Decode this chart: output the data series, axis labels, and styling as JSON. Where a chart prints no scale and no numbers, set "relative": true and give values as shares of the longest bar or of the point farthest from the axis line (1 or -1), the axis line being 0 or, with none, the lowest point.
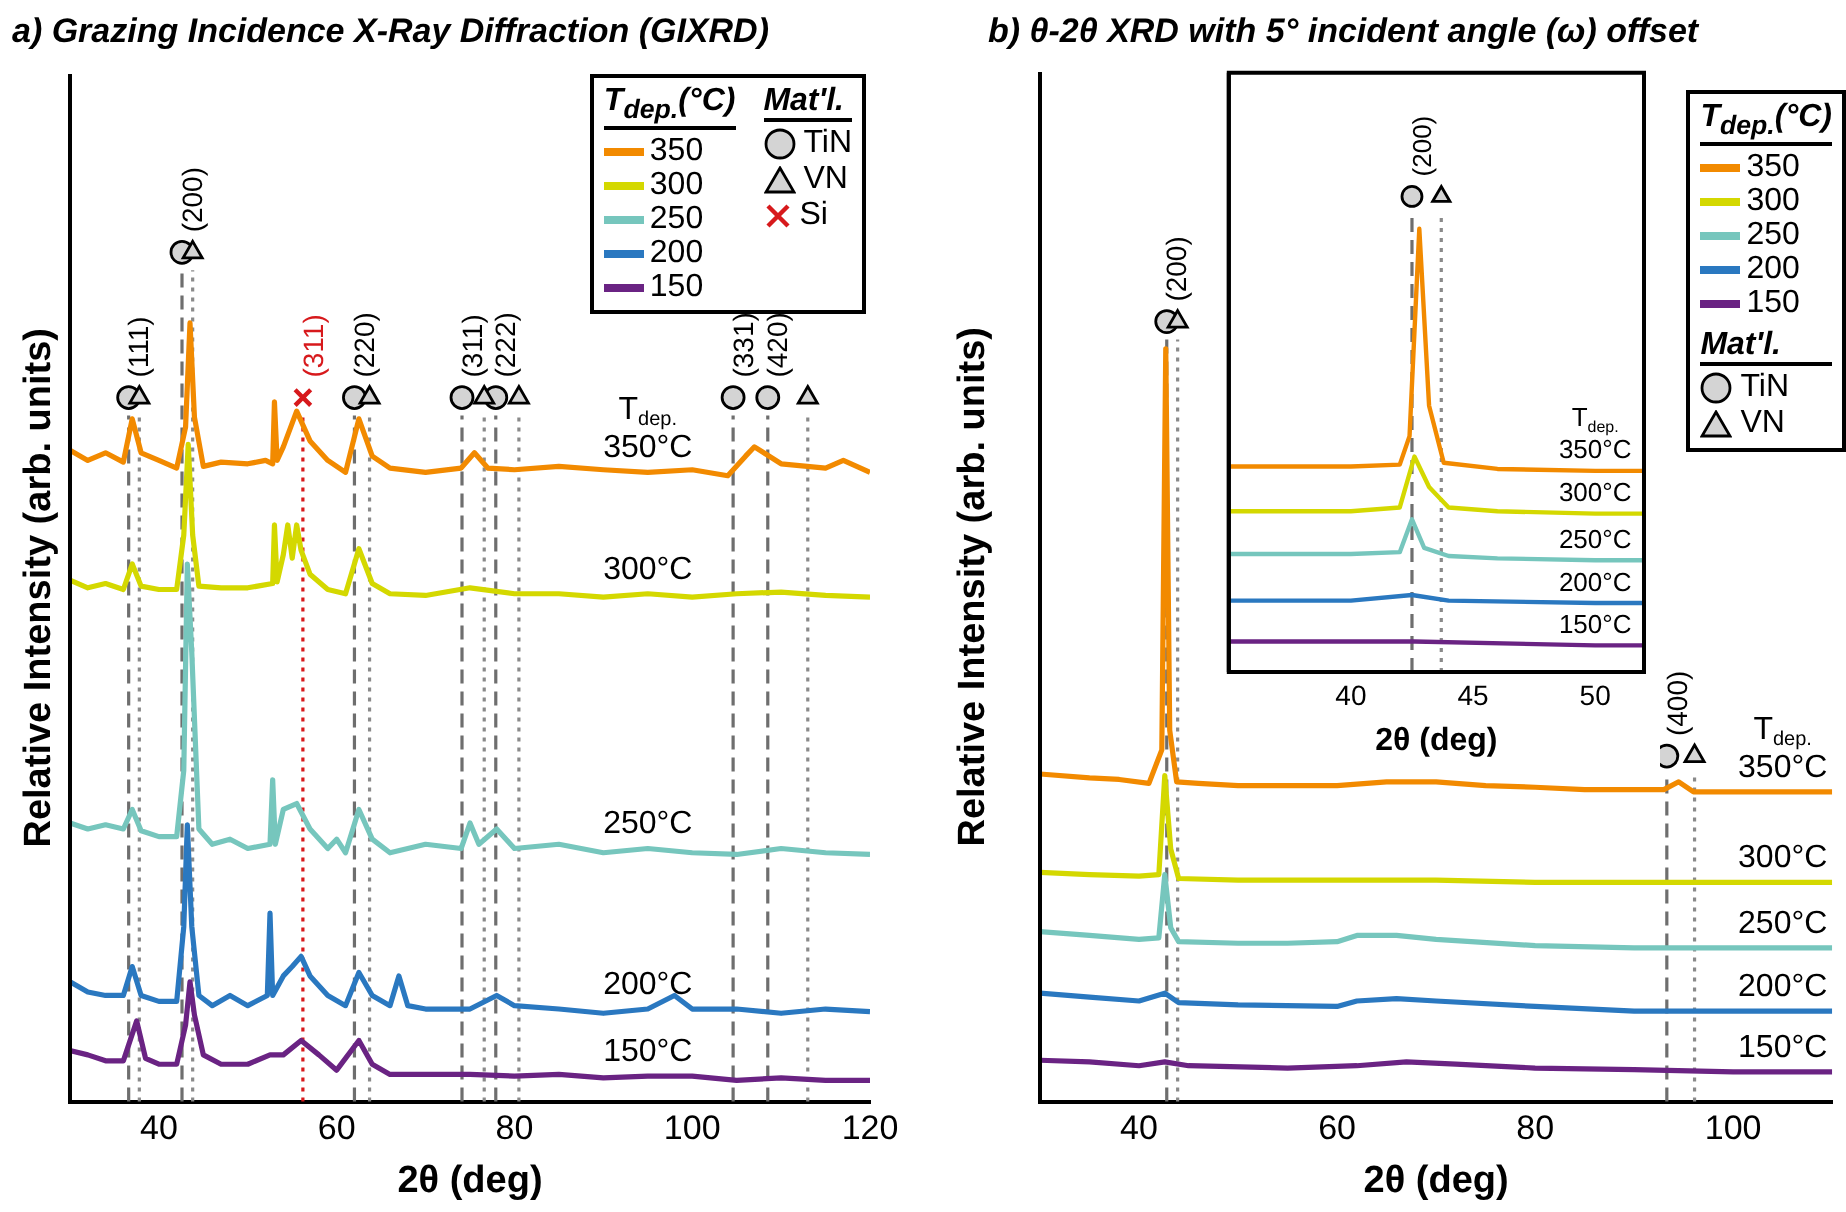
{
  "chart_data": [
    {
      "type": "line",
      "title": "a) Grazing Incidence X-Ray Diffraction (GIXRD)",
      "xlabel": "2θ (deg)",
      "ylabel": "Relative Intensity (arb. units)",
      "legend_title": "T$_{dep.}$(°C)",
      "legend": "top right",
      "relative": true,
      "line_style": "solid",
      "xlim": [
        30,
        120
      ],
      "xticks": [
        40,
        60,
        80,
        100,
        120
      ],
      "annotations": [
        "Mat'l.",
        "T$_{dep.}$",
        {
          "text": "350°C",
          "x": 95,
          "y": 0.741
        },
        {
          "text": "300°C",
          "x": 95,
          "y": 0.598
        },
        {
          "text": "250°C",
          "x": 95,
          "y": 0.298
        },
        {
          "text": "200°C",
          "x": 95,
          "y": 0.109
        },
        {
          "text": "150°C",
          "x": 95,
          "y": 0.03
        },
        {
          "text": "(111)",
          "x": 36.6,
          "y": 0.829
        },
        {
          "text": "(200)",
          "x": 42.6,
          "y": 1
        },
        {
          "text": "(311)",
          "x": 56.2,
          "y": 0.829
        },
        {
          "text": "(220)",
          "x": 62.0,
          "y": 0.829
        },
        {
          "text": "(311)",
          "x": 74.1,
          "y": 0.829
        },
        {
          "text": "(222)",
          "x": 77.9,
          "y": 0.829
        },
        {
          "text": "(331)",
          "x": 104.6,
          "y": 0.829
        },
        {
          "text": "(420)",
          "x": 108.5,
          "y": 0.829
        }
      ],
      "ref_lines": [
        {
          "axis": "x",
          "value": 36.6,
          "color": "#6e6e6e",
          "line_style": "dashed"
        },
        {
          "axis": "x",
          "value": 37.8,
          "color": "#8a8a8a",
          "line_style": "dotted"
        },
        {
          "axis": "x",
          "value": 42.6,
          "color": "#6e6e6e",
          "line_style": "dashed"
        },
        {
          "axis": "x",
          "value": 43.8,
          "color": "#8a8a8a",
          "line_style": "dotted"
        },
        {
          "axis": "x",
          "value": 56.2,
          "color": "#d7191c",
          "line_style": "dotted"
        },
        {
          "axis": "x",
          "value": 62.0,
          "color": "#6e6e6e",
          "line_style": "dashed"
        },
        {
          "axis": "x",
          "value": 63.7,
          "color": "#8a8a8a",
          "line_style": "dotted"
        },
        {
          "axis": "x",
          "value": 74.1,
          "color": "#6e6e6e",
          "line_style": "dashed"
        },
        {
          "axis": "x",
          "value": 76.6,
          "color": "#8a8a8a",
          "line_style": "dotted"
        },
        {
          "axis": "x",
          "value": 77.9,
          "color": "#6e6e6e",
          "line_style": "dashed"
        },
        {
          "axis": "x",
          "value": 80.5,
          "color": "#8a8a8a",
          "line_style": "dotted"
        },
        {
          "axis": "x",
          "value": 104.6,
          "color": "#6e6e6e",
          "line_style": "dashed"
        },
        {
          "axis": "x",
          "value": 108.5,
          "color": "#6e6e6e",
          "line_style": "dashed"
        },
        {
          "axis": "x",
          "value": 113.0,
          "color": "#8a8a8a",
          "line_style": "dotted"
        }
      ],
      "series": [
        {
          "name": "350",
          "color": "#f28a00",
          "x": [
            30,
            32,
            34,
            36,
            37,
            38,
            40,
            42,
            43,
            43.5,
            44,
            45,
            47,
            50,
            52,
            52.8,
            53,
            53.3,
            54,
            55.5,
            57,
            59,
            61,
            62.5,
            64,
            66,
            70,
            74,
            75.5,
            77,
            80,
            85,
            90,
            95,
            100,
            104,
            106,
            107,
            110,
            115,
            117,
            120
          ],
          "values": [
            0.767,
            0.755,
            0.764,
            0.753,
            0.804,
            0.764,
            0.755,
            0.746,
            0.794,
            0.917,
            0.806,
            0.748,
            0.753,
            0.751,
            0.755,
            0.751,
            0.824,
            0.755,
            0.771,
            0.813,
            0.778,
            0.755,
            0.741,
            0.804,
            0.76,
            0.746,
            0.741,
            0.746,
            0.764,
            0.746,
            0.744,
            0.748,
            0.744,
            0.741,
            0.744,
            0.737,
            0.76,
            0.771,
            0.751,
            0.746,
            0.755,
            0.741
          ]
        },
        {
          "name": "300",
          "color": "#d4d800",
          "x": [
            30,
            32,
            34,
            36,
            37,
            38,
            40,
            42,
            42.8,
            43.3,
            43.8,
            44.5,
            47,
            50,
            52.8,
            53,
            53.3,
            54,
            54.5,
            55,
            55.5,
            56,
            57,
            59,
            61,
            62.5,
            64,
            66,
            70,
            75,
            80,
            85,
            90,
            95,
            100,
            105,
            110,
            115,
            120
          ],
          "values": [
            0.614,
            0.605,
            0.61,
            0.603,
            0.633,
            0.607,
            0.603,
            0.603,
            0.667,
            0.774,
            0.667,
            0.607,
            0.605,
            0.605,
            0.61,
            0.679,
            0.612,
            0.644,
            0.679,
            0.64,
            0.679,
            0.649,
            0.621,
            0.603,
            0.598,
            0.651,
            0.61,
            0.598,
            0.596,
            0.605,
            0.598,
            0.598,
            0.594,
            0.598,
            0.594,
            0.598,
            0.6,
            0.596,
            0.594
          ]
        },
        {
          "name": "250",
          "color": "#76c6bd",
          "x": [
            30,
            32,
            34,
            36,
            37,
            38,
            40,
            42,
            42.8,
            43.2,
            43.7,
            44.5,
            46,
            48,
            50,
            52.5,
            52.8,
            53.1,
            54,
            55.5,
            57,
            59,
            60,
            61,
            62.5,
            64,
            66,
            70,
            74,
            75,
            76,
            78,
            80,
            85,
            90,
            95,
            100,
            105,
            110,
            115,
            120
          ],
          "values": [
            0.328,
            0.321,
            0.326,
            0.321,
            0.344,
            0.319,
            0.312,
            0.312,
            0.39,
            0.633,
            0.529,
            0.321,
            0.303,
            0.309,
            0.298,
            0.303,
            0.379,
            0.303,
            0.344,
            0.351,
            0.321,
            0.298,
            0.309,
            0.293,
            0.344,
            0.309,
            0.293,
            0.303,
            0.298,
            0.328,
            0.303,
            0.321,
            0.298,
            0.303,
            0.293,
            0.298,
            0.293,
            0.291,
            0.298,
            0.293,
            0.291
          ]
        },
        {
          "name": "200",
          "color": "#2a78c0",
          "x": [
            30,
            32,
            34,
            36,
            37,
            38,
            40,
            42,
            42.8,
            43.2,
            43.7,
            44.5,
            46,
            48,
            50,
            52.2,
            52.5,
            52.8,
            54,
            55,
            56,
            57,
            59,
            61,
            62.5,
            64,
            66,
            67,
            68,
            70,
            75,
            78,
            80,
            85,
            90,
            95,
            98,
            100,
            105,
            110,
            115,
            120
          ],
          "values": [
            0.141,
            0.129,
            0.125,
            0.125,
            0.159,
            0.125,
            0.118,
            0.118,
            0.206,
            0.326,
            0.206,
            0.125,
            0.113,
            0.125,
            0.113,
            0.125,
            0.222,
            0.125,
            0.148,
            0.159,
            0.171,
            0.148,
            0.125,
            0.113,
            0.152,
            0.125,
            0.113,
            0.148,
            0.113,
            0.109,
            0.109,
            0.125,
            0.113,
            0.109,
            0.104,
            0.109,
            0.125,
            0.109,
            0.109,
            0.104,
            0.109,
            0.106
          ]
        },
        {
          "name": "150",
          "color": "#6a2383",
          "x": [
            30,
            32,
            34,
            36,
            37.5,
            38.5,
            40,
            42,
            43,
            43.5,
            44,
            45,
            47,
            50,
            52.5,
            54,
            56,
            58,
            60,
            62.5,
            64,
            66,
            70,
            75,
            80,
            85,
            90,
            95,
            100,
            105,
            110,
            115,
            120
          ],
          "values": [
            0.06,
            0.055,
            0.048,
            0.048,
            0.095,
            0.051,
            0.044,
            0.044,
            0.09,
            0.141,
            0.102,
            0.055,
            0.044,
            0.044,
            0.055,
            0.055,
            0.072,
            0.055,
            0.037,
            0.072,
            0.044,
            0.032,
            0.032,
            0.032,
            0.03,
            0.032,
            0.028,
            0.03,
            0.03,
            0.025,
            0.028,
            0.025,
            0.025
          ]
        },
        {
          "name": "TiN",
          "type": "scatter",
          "marker": "circle",
          "color": "#d4d4d4",
          "x": [
            36.6,
            42.6,
            62.0,
            74.1,
            77.9,
            104.6,
            108.5
          ],
          "values": [
            0.829,
            1,
            0.829,
            0.829,
            0.829,
            0.829,
            0.829
          ]
        },
        {
          "name": "VN",
          "type": "scatter",
          "marker": "triangle",
          "color": "#d4d4d4",
          "x": [
            37.8,
            43.8,
            63.7,
            76.6,
            80.5,
            113.0
          ],
          "values": [
            0.829,
            1,
            0.829,
            0.829,
            0.829,
            0.829
          ]
        },
        {
          "name": "Si",
          "type": "scatter",
          "marker": "cross",
          "color": "#d7191c",
          "x": [
            56.2
          ],
          "values": [
            0.829
          ]
        }
      ]
    },
    {
      "type": "line",
      "title": "b) θ-2θ XRD with 5° incident angle (ω) offset",
      "xlabel": "2θ (deg)",
      "ylabel": "Relative Intensity (arb. units)",
      "legend_title": "T$_{dep.}$(°C)",
      "legend": "top right",
      "relative": true,
      "line_style": "solid",
      "xlim": [
        30,
        110
      ],
      "xticks": [
        40,
        60,
        80,
        100
      ],
      "annotations": [
        "Mat'l.",
        "T$_{dep.}$",
        {
          "text": "350°C",
          "x": 105,
          "y": 0.397
        },
        {
          "text": "300°C",
          "x": 105,
          "y": 0.281
        },
        {
          "text": "250°C",
          "x": 105,
          "y": 0.197
        },
        {
          "text": "200°C",
          "x": 105,
          "y": 0.116
        },
        {
          "text": "150°C",
          "x": 105,
          "y": 0.038
        },
        {
          "text": "(200)",
          "x": 42.8,
          "y": 1
        },
        {
          "text": "(400)",
          "x": 93.3,
          "y": 0.443
        }
      ],
      "ref_lines": [
        {
          "axis": "x",
          "value": 42.8,
          "color": "#6e6e6e",
          "line_style": "dashed"
        },
        {
          "axis": "x",
          "value": 43.9,
          "color": "#8a8a8a",
          "line_style": "dotted"
        },
        {
          "axis": "x",
          "value": 93.3,
          "color": "#6e6e6e",
          "line_style": "dashed"
        },
        {
          "axis": "x",
          "value": 96.1,
          "color": "#8a8a8a",
          "line_style": "dotted"
        }
      ],
      "series": [
        {
          "name": "350",
          "color": "#f28a00",
          "x": [
            30,
            35,
            38,
            41,
            42.3,
            42.7,
            43.1,
            43.8,
            46,
            50,
            55,
            60,
            65,
            70,
            75,
            80,
            85,
            90,
            93,
            94.5,
            96,
            100,
            105,
            110
          ],
          "values": [
            0.42,
            0.415,
            0.413,
            0.408,
            0.451,
            0.965,
            0.476,
            0.41,
            0.408,
            0.405,
            0.405,
            0.405,
            0.41,
            0.41,
            0.405,
            0.403,
            0.4,
            0.4,
            0.4,
            0.41,
            0.397,
            0.397,
            0.397,
            0.397
          ]
        },
        {
          "name": "300",
          "color": "#d4d800",
          "x": [
            30,
            35,
            40,
            42,
            42.6,
            43.2,
            44,
            50,
            60,
            70,
            80,
            90,
            100,
            105,
            110
          ],
          "values": [
            0.294,
            0.291,
            0.289,
            0.291,
            0.418,
            0.324,
            0.286,
            0.284,
            0.284,
            0.284,
            0.281,
            0.281,
            0.281,
            0.281,
            0.281
          ]
        },
        {
          "name": "250",
          "color": "#76c6bd",
          "x": [
            30,
            35,
            40,
            42,
            42.6,
            43.2,
            44,
            50,
            55,
            60,
            62,
            66,
            70,
            80,
            90,
            100,
            105,
            110
          ],
          "values": [
            0.218,
            0.213,
            0.208,
            0.21,
            0.291,
            0.223,
            0.205,
            0.203,
            0.203,
            0.205,
            0.213,
            0.213,
            0.208,
            0.2,
            0.197,
            0.197,
            0.197,
            0.197
          ]
        },
        {
          "name": "200",
          "color": "#2a78c0",
          "x": [
            30,
            35,
            40,
            42.6,
            44,
            50,
            60,
            62,
            66,
            70,
            80,
            90,
            100,
            105,
            110
          ],
          "values": [
            0.139,
            0.134,
            0.129,
            0.139,
            0.127,
            0.124,
            0.122,
            0.129,
            0.132,
            0.129,
            0.122,
            0.116,
            0.116,
            0.116,
            0.116
          ]
        },
        {
          "name": "150",
          "color": "#6a2383",
          "x": [
            30,
            35,
            40,
            42.6,
            45,
            55,
            62,
            67,
            72,
            80,
            90,
            100,
            105,
            110
          ],
          "values": [
            0.053,
            0.051,
            0.046,
            0.051,
            0.046,
            0.043,
            0.046,
            0.051,
            0.048,
            0.043,
            0.041,
            0.038,
            0.038,
            0.038
          ]
        },
        {
          "name": "TiN",
          "type": "scatter",
          "marker": "circle",
          "color": "#d4d4d4",
          "x": [
            42.8,
            93.3
          ],
          "values": [
            1,
            0.443
          ]
        },
        {
          "name": "VN",
          "type": "scatter",
          "marker": "triangle",
          "color": "#d4d4d4",
          "x": [
            43.9,
            96.1
          ],
          "values": [
            1,
            0.443
          ]
        }
      ]
    },
    {
      "type": "line",
      "xlabel": "2θ (deg)",
      "relative": true,
      "line_style": "solid",
      "xlim": [
        35,
        52
      ],
      "xticks": [
        40,
        45,
        50
      ],
      "annotations": [
        "T$_{dep.}$",
        {
          "text": "350°C",
          "x": 50,
          "y": 0.423
        },
        {
          "text": "300°C",
          "x": 50,
          "y": 0.333
        },
        {
          "text": "250°C",
          "x": 50,
          "y": 0.235
        },
        {
          "text": "200°C",
          "x": 50,
          "y": 0.145
        },
        {
          "text": "150°C",
          "x": 50,
          "y": 0.056
        },
        {
          "text": "(200)",
          "x": 42.5,
          "y": 1
        }
      ],
      "ref_lines": [
        {
          "axis": "x",
          "value": 42.5,
          "color": "#6e6e6e",
          "line_style": "dashed"
        },
        {
          "axis": "x",
          "value": 43.7,
          "color": "#8a8a8a",
          "line_style": "dotted"
        }
      ],
      "series": [
        {
          "color": "#f28a00",
          "x": [
            35,
            40,
            42,
            42.4,
            42.8,
            43.2,
            43.8,
            46,
            50,
            52
          ],
          "values": [
            0.432,
            0.432,
            0.436,
            0.496,
            0.932,
            0.56,
            0.44,
            0.427,
            0.423,
            0.423
          ]
        },
        {
          "color": "#d4d800",
          "x": [
            35,
            40,
            42,
            42.6,
            43.2,
            44,
            46,
            50,
            52
          ],
          "values": [
            0.338,
            0.338,
            0.346,
            0.453,
            0.389,
            0.346,
            0.338,
            0.333,
            0.333
          ]
        },
        {
          "color": "#76c6bd",
          "x": [
            35,
            40,
            42,
            42.5,
            43,
            44,
            46,
            50,
            52
          ],
          "values": [
            0.248,
            0.248,
            0.252,
            0.321,
            0.261,
            0.244,
            0.239,
            0.235,
            0.235
          ]
        },
        {
          "color": "#2a78c0",
          "x": [
            35,
            40,
            42.5,
            44,
            50,
            52
          ],
          "values": [
            0.15,
            0.15,
            0.162,
            0.15,
            0.145,
            0.145
          ]
        },
        {
          "color": "#6a2383",
          "x": [
            35,
            40,
            42.6,
            50,
            52
          ],
          "values": [
            0.064,
            0.064,
            0.064,
            0.056,
            0.056
          ]
        },
        {
          "type": "scatter",
          "marker": "circle",
          "color": "#d4d4d4",
          "x": [
            42.5
          ],
          "values": [
            1
          ]
        },
        {
          "type": "scatter",
          "marker": "triangle",
          "color": "#d4d4d4",
          "x": [
            43.7
          ],
          "values": [
            1
          ]
        }
      ]
    }
  ]
}
